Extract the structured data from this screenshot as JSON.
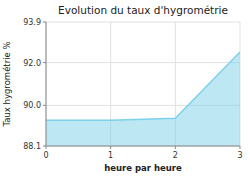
{
  "chart_data": {
    "type": "area",
    "title": "Evolution du taux d'hygrométrie",
    "x_label": "heure par heure",
    "y_label": "Taux hygrométrie %",
    "x": [
      0,
      1,
      2,
      3
    ],
    "values": [
      89.3,
      89.3,
      89.4,
      92.5
    ],
    "color": "#7ecfea",
    "xlim": [
      0,
      3
    ],
    "ylim": [
      88.1,
      93.9
    ],
    "xticks": [
      0,
      1,
      2,
      3
    ],
    "yticks": [
      88.1,
      {
        "value": 90.0,
        "label": "90.0"
      },
      {
        "value": 92.0,
        "label": "92.0"
      },
      93.9
    ],
    "grid": true
  }
}
